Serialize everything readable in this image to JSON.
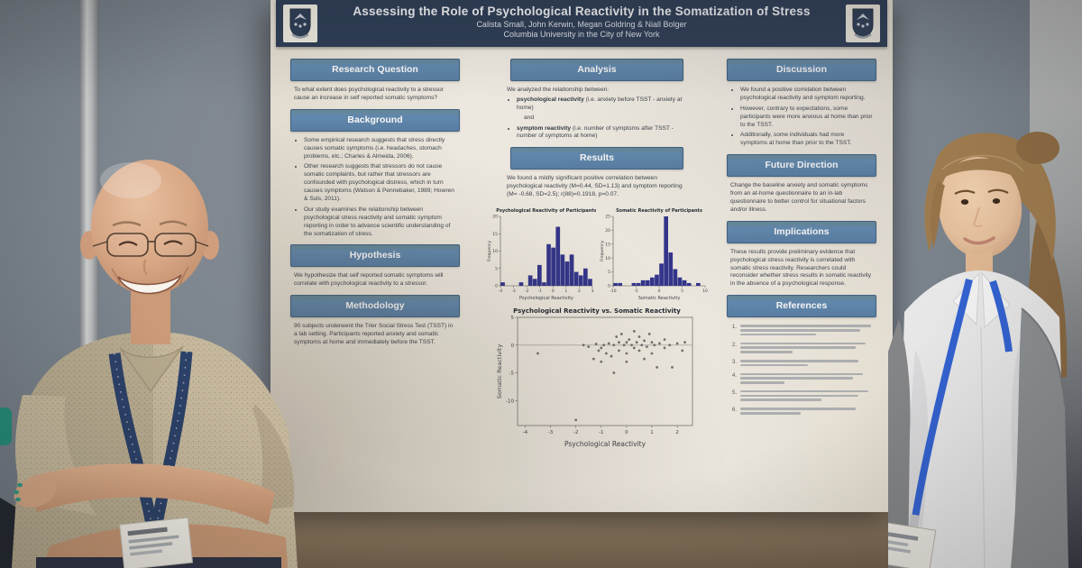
{
  "poster": {
    "header": {
      "title": "Assessing the Role of Psychological Reactivity in the Somatization of Stress",
      "authors": "Calista Small, John Kerwin, Megan Goldring & Niall Bolger",
      "affiliation": "Columbia University in the City of New York"
    },
    "sections": {
      "research_question": {
        "title": "Research Question",
        "body": "To what extent does psychological reactivity to a stressor cause an increase in self reported somatic symptoms?"
      },
      "background": {
        "title": "Background",
        "bullets": [
          "Some empirical research suggests that stress directly causes somatic symptoms (i.e. headaches, stomach problems, etc.; Charles & Almeida, 2006).",
          "Other research suggests that stressors do not cause somatic complaints, but rather that stressors are confounded with psychological distress, which in turn causes symptoms (Watson & Pennebaker, 1989; Howren & Suls, 2011).",
          "Our study examines the relationship between psychological stress reactivity and somatic symptom reporting in order to advance scientific understanding of the somatization of stress."
        ]
      },
      "hypothesis": {
        "title": "Hypothesis",
        "body": "We hypothesize that self reported somatic symptoms will correlate with psychological reactivity to a stressor."
      },
      "methodology": {
        "title": "Methodology",
        "body": "90 subjects underwent the Trier Social Stress Test (TSST) in a lab setting. Participants reported anxiety and somatic symptoms at home and immediately before the TSST."
      },
      "analysis": {
        "title": "Analysis",
        "intro": "We analyzed the relationship between:",
        "bullet1_bold": "psychological reactivity",
        "bullet1_rest": " (i.e. anxiety before TSST - anxiety at home)",
        "conjunction": "and",
        "bullet2_bold": "symptom reactivity",
        "bullet2_rest": " (i.e. number of symptoms after TSST - number of symptoms at home)"
      },
      "results": {
        "title": "Results",
        "body": "We found a mildly significant positive correlation between psychological reactivity (M=0.44, SD=1.13) and symptom reporting (M= -0.68, SD=2.5); r(88)=0.1918, p=0.07."
      },
      "discussion": {
        "title": "Discussion",
        "bullets": [
          "We found a positive correlation between psychological reactivity and symptom reporting.",
          "However, contrary to expectations, some participants were more anxious at home than prior to the TSST.",
          "Additionally, some individuals had more symptoms at home than prior to the TSST."
        ]
      },
      "future_direction": {
        "title": "Future Direction",
        "body": "Change the baseline anxiety and somatic symptoms from an at-home questionnaire to an in-lab questionnaire to better control for situational factors and/or illness."
      },
      "implications": {
        "title": "Implications",
        "body": "These results provide preliminary evidence that psychological stress reactivity is correlated with somatic stress reactivity. Researchers could reconsider whether stress results in somatic reactivity in the absence of a psychological response."
      },
      "references": {
        "title": "References",
        "count": 6
      }
    }
  },
  "chart_data": [
    {
      "type": "bar",
      "title": "Psychological Reactivity of Participants",
      "xlabel": "Psychological Reactivity",
      "ylabel": "Frequency",
      "bin_start": -4,
      "bin_width": 0.35,
      "values": [
        1,
        0,
        0,
        0,
        1,
        0,
        3,
        2,
        6,
        1,
        12,
        11,
        17,
        9,
        7,
        9,
        4,
        3,
        5,
        2
      ],
      "xticks": [
        -4,
        -3,
        -2,
        -1,
        0,
        1,
        2,
        3
      ],
      "ylim": [
        0,
        20
      ],
      "yticks": [
        0,
        5,
        10,
        15,
        20
      ],
      "bar_color": "#2f3390",
      "grid": false
    },
    {
      "type": "bar",
      "title": "Somatic Reactivity of Participants",
      "xlabel": "Somatic Reactivity",
      "ylabel": "Frequency",
      "bin_start": -10,
      "bin_width": 1,
      "values": [
        1,
        1,
        0,
        0,
        1,
        1,
        2,
        2,
        3,
        4,
        8,
        25,
        12,
        6,
        3,
        2,
        1,
        0,
        1,
        0
      ],
      "xticks": [
        -10,
        -5,
        0,
        5,
        10
      ],
      "ylim": [
        0,
        25
      ],
      "yticks": [
        0,
        5,
        10,
        15,
        20,
        25
      ],
      "bar_color": "#2f3390",
      "grid": false
    },
    {
      "type": "scatter",
      "title": "Psychological Reactivity vs. Somatic Reactivity",
      "xlabel": "Psychological Reactivity",
      "ylabel": "Somatic Reactivity",
      "xlim": [
        -4.3,
        2.6
      ],
      "ylim": [
        -14.5,
        5
      ],
      "xticks": [
        -4,
        -3,
        -2,
        -1,
        0,
        1,
        2
      ],
      "yticks": [
        5,
        0,
        -5,
        -10
      ],
      "refline_y": 0,
      "points": [
        [
          -3.5,
          -1.5
        ],
        [
          -2,
          -13.5
        ],
        [
          -1.7,
          0
        ],
        [
          -1.5,
          -0.3
        ],
        [
          -1.3,
          -2.5
        ],
        [
          -1.2,
          0.2
        ],
        [
          -1.1,
          -1
        ],
        [
          -1,
          -0.5
        ],
        [
          -1,
          -3
        ],
        [
          -0.9,
          0
        ],
        [
          -0.8,
          -1.5
        ],
        [
          -0.7,
          0.3
        ],
        [
          -0.6,
          -2
        ],
        [
          -0.5,
          0
        ],
        [
          -0.5,
          -5
        ],
        [
          -0.4,
          1.5
        ],
        [
          -0.3,
          0.5
        ],
        [
          -0.3,
          -1
        ],
        [
          -0.2,
          2
        ],
        [
          -0.1,
          0
        ],
        [
          0,
          0.5
        ],
        [
          0,
          -1.5
        ],
        [
          0,
          -3
        ],
        [
          0.1,
          1
        ],
        [
          0.2,
          0
        ],
        [
          0.3,
          -0.5
        ],
        [
          0.3,
          2.5
        ],
        [
          0.4,
          0.5
        ],
        [
          0.5,
          -1
        ],
        [
          0.5,
          1.5
        ],
        [
          0.6,
          0
        ],
        [
          0.7,
          -2.5
        ],
        [
          0.7,
          0.8
        ],
        [
          0.8,
          -0.3
        ],
        [
          0.9,
          2
        ],
        [
          1,
          0.5
        ],
        [
          1,
          -1.5
        ],
        [
          1.1,
          0
        ],
        [
          1.2,
          -4
        ],
        [
          1.3,
          0.3
        ],
        [
          1.5,
          -0.5
        ],
        [
          1.5,
          1
        ],
        [
          1.7,
          0
        ],
        [
          1.8,
          -4
        ],
        [
          2,
          0.3
        ],
        [
          2.2,
          -1
        ],
        [
          2.3,
          0.5
        ]
      ],
      "marker_color": "#5d5d5d"
    }
  ],
  "colors": {
    "poster_header_navy": "#2c3e59",
    "section_band_blue": "#5f8bb4",
    "poster_paper": "#f1eee6",
    "histogram_bar": "#2f3390",
    "wall_gray": "#7d8894",
    "floor_tan": "#8a7a62",
    "lanyard_navy": "#27406b",
    "lanyard_blue": "#2f62d8"
  }
}
